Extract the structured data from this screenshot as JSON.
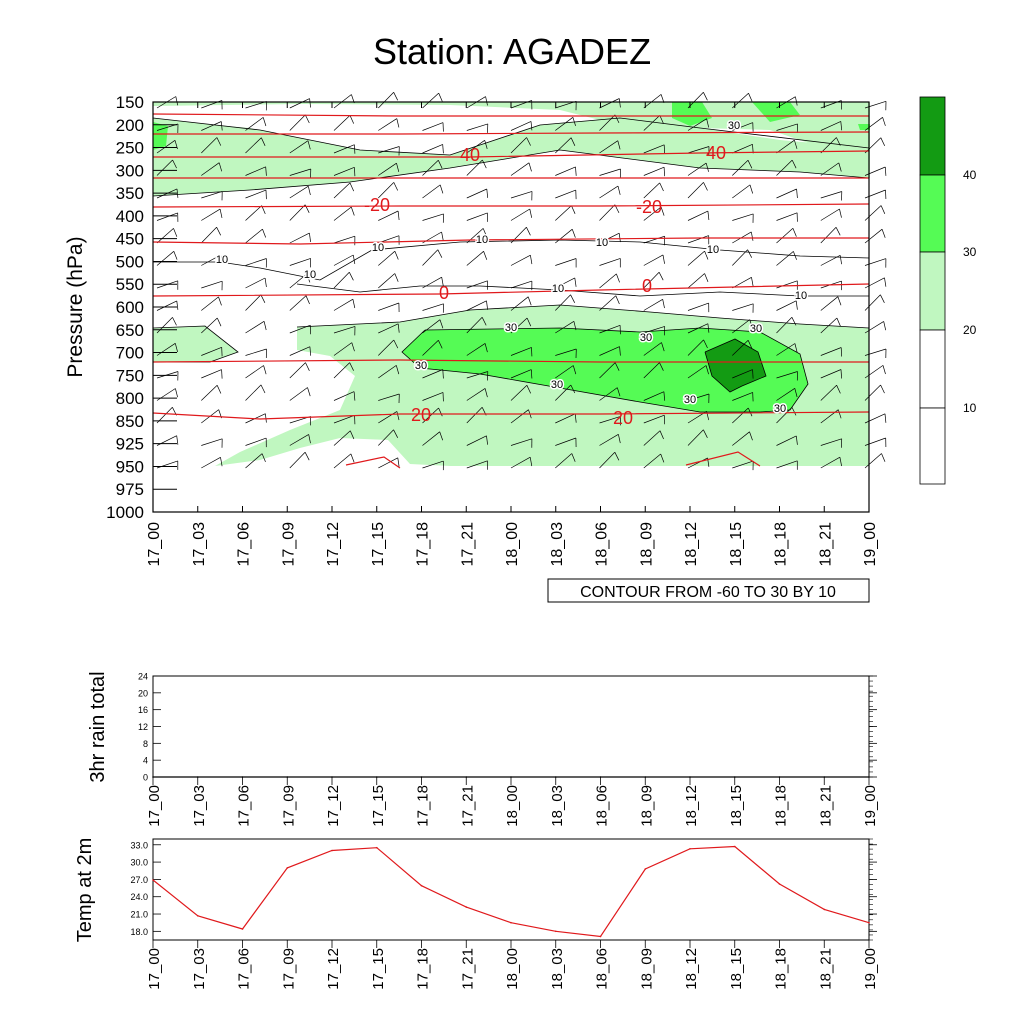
{
  "title": "Station: AGADEZ",
  "colors": {
    "fill_lt": "#c0f7c0",
    "fill_md": "#55fb55",
    "fill_dk": "#139b13",
    "isotherm": "#e0191c",
    "temp_line": "#e0191c",
    "axis": "#000000"
  },
  "chart_data": [
    {
      "type": "heatmap",
      "name": "wind_cross_section",
      "ylabel": "Pressure (hPa)",
      "y_ticks": [
        "150",
        "200",
        "250",
        "300",
        "350",
        "400",
        "450",
        "500",
        "550",
        "600",
        "650",
        "700",
        "750",
        "800",
        "850",
        "925",
        "950",
        "975",
        "1000"
      ],
      "x_ticks": [
        "17_00",
        "17_03",
        "17_06",
        "17_09",
        "17_12",
        "17_15",
        "17_18",
        "17_21",
        "18_00",
        "18_03",
        "18_06",
        "18_09",
        "18_12",
        "18_15",
        "18_18",
        "18_21",
        "19_00"
      ],
      "info_label": "CONTOUR FROM -60 TO 30 BY 10",
      "colorbar": {
        "levels": [
          10,
          20,
          30,
          40
        ],
        "colors": [
          "#ffffff",
          "#ffffff",
          "#c0f7c0",
          "#55fb55",
          "#139b13"
        ]
      },
      "isotherms": [
        {
          "value": -40,
          "level": "250"
        },
        {
          "value": -20,
          "level": "375"
        },
        {
          "value": 0,
          "level": "575"
        },
        {
          "value": 20,
          "level": "850"
        }
      ],
      "contour_labels": [
        "40",
        "40",
        "-20",
        "-20",
        "0",
        "0",
        "20",
        "20",
        "10",
        "10",
        "10",
        "10",
        "10",
        "10",
        "10",
        "10",
        "30",
        "30",
        "30",
        "30",
        "30",
        "30",
        "30",
        "30"
      ],
      "grid": false
    },
    {
      "type": "line",
      "name": "rain",
      "ylabel": "3hr rain total",
      "y_ticks": [
        "0",
        "4",
        "8",
        "12",
        "16",
        "20",
        "24"
      ],
      "ylim": [
        0,
        24
      ],
      "x_ticks": [
        "17_00",
        "17_03",
        "17_06",
        "17_09",
        "17_12",
        "17_15",
        "17_18",
        "17_21",
        "18_00",
        "18_03",
        "18_06",
        "18_09",
        "18_12",
        "18_15",
        "18_18",
        "18_21",
        "19_00"
      ],
      "values": [
        0,
        0,
        0,
        0,
        0,
        0,
        0,
        0,
        0,
        0,
        0,
        0,
        0,
        0,
        0,
        0,
        0
      ]
    },
    {
      "type": "line",
      "name": "temperature",
      "ylabel": "Temp at 2m",
      "y_ticks": [
        "18.0",
        "21.0",
        "24.0",
        "27.0",
        "30.0",
        "33.0"
      ],
      "ylim": [
        16.5,
        34.0
      ],
      "x_ticks": [
        "17_00",
        "17_03",
        "17_06",
        "17_09",
        "17_12",
        "17_15",
        "17_18",
        "17_21",
        "18_00",
        "18_03",
        "18_06",
        "18_09",
        "18_12",
        "18_15",
        "18_18",
        "18_21",
        "19_00"
      ],
      "values": [
        26.9,
        20.7,
        18.4,
        29.0,
        32.0,
        32.5,
        25.9,
        22.2,
        19.5,
        18.0,
        17.1,
        28.8,
        32.3,
        32.7,
        26.2,
        21.8,
        19.5
      ]
    }
  ]
}
